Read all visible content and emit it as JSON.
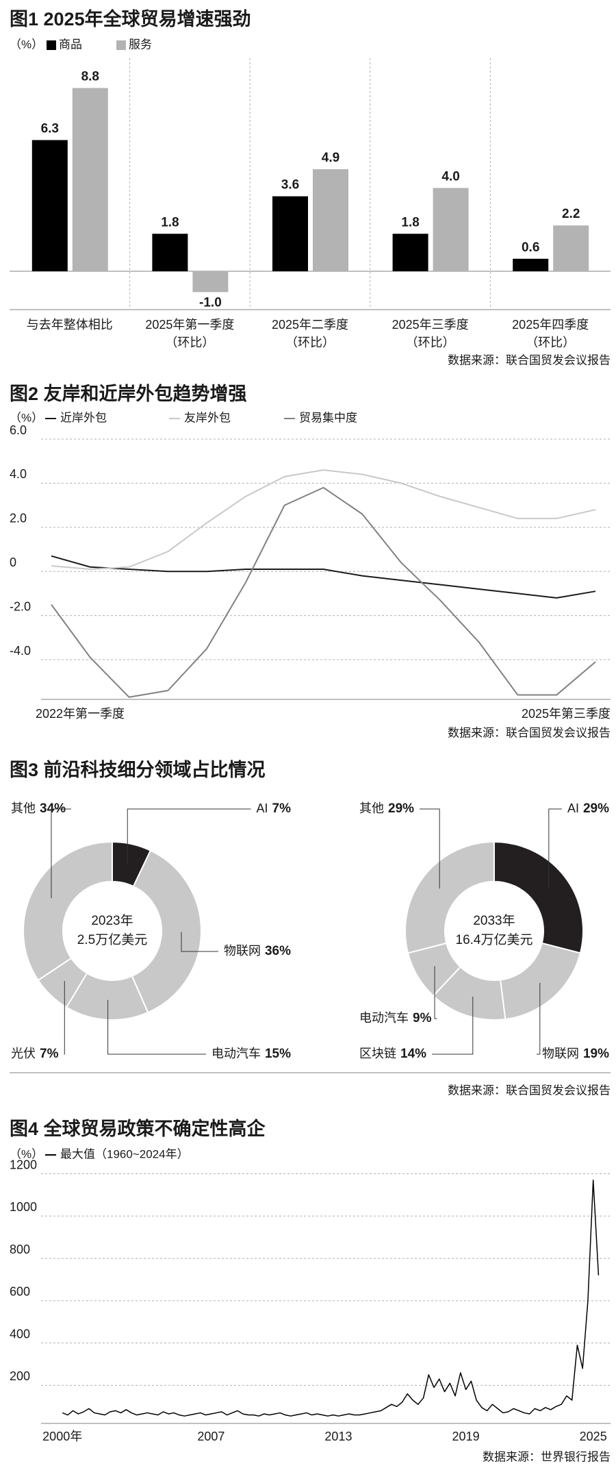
{
  "chart_data": [
    {
      "type": "bar",
      "title": "图1 2025年全球贸易增速强劲",
      "unit": "（%）",
      "categories": [
        [
          "与去年整体相比"
        ],
        [
          "2025年第一季度",
          "（环比）"
        ],
        [
          "2025年二季度",
          "（环比）"
        ],
        [
          "2025年三季度",
          "（环比）"
        ],
        [
          "2025年四季度",
          "（环比）"
        ]
      ],
      "series": [
        {
          "name": "商品",
          "color": "#000000",
          "values": [
            6.3,
            1.8,
            3.6,
            1.8,
            0.6
          ],
          "value_labels": [
            "6.3",
            "1.8",
            "3.6",
            "1.8",
            "0.6"
          ]
        },
        {
          "name": "服务",
          "color": "#b3b3b3",
          "values": [
            8.8,
            -1.0,
            4.9,
            4.0,
            2.2
          ],
          "value_labels": [
            "8.8",
            "-1.0",
            "4.9",
            "4.0",
            "2.2"
          ]
        }
      ],
      "source": "数据来源：联合国贸发会议报告"
    },
    {
      "type": "line",
      "title": "图2 友岸和近岸外包趋势增强",
      "unit": "（%）",
      "categories": [
        "2022年第一季度",
        null,
        null,
        null,
        null,
        null,
        null,
        null,
        null,
        null,
        null,
        null,
        null,
        null,
        "2025年第三季度"
      ],
      "ylim": [
        -5.8,
        6.0
      ],
      "yticks": [
        {
          "value": 6,
          "label": "6.0"
        },
        {
          "value": 4,
          "label": "4.0"
        },
        {
          "value": 2,
          "label": "2.0"
        },
        0,
        {
          "value": -2,
          "label": "-2.0"
        },
        {
          "value": -4,
          "label": "-4.0"
        }
      ],
      "grid": true,
      "series": [
        {
          "name": "近岸外包",
          "color": "#1a1a1a",
          "values": [
            0.7,
            0.2,
            0.1,
            0.0,
            0.0,
            0.1,
            0.1,
            0.1,
            -0.2,
            -0.4,
            -0.6,
            -0.8,
            -1.0,
            -1.2,
            -0.9
          ]
        },
        {
          "name": "友岸外包",
          "color": "#c8c8c8",
          "values": [
            0.25,
            0.1,
            0.2,
            0.9,
            2.2,
            3.4,
            4.3,
            4.6,
            4.4,
            4.0,
            3.4,
            2.9,
            2.4,
            2.4,
            2.8
          ]
        },
        {
          "name": "贸易集中度",
          "color": "#808080",
          "values": [
            -1.5,
            -3.9,
            -5.7,
            -5.4,
            -3.5,
            -0.5,
            3.0,
            3.8,
            2.6,
            0.4,
            -1.3,
            -3.2,
            -5.6,
            -5.6,
            -4.1
          ]
        }
      ],
      "source": "数据来源：联合国贸发会议报告"
    },
    {
      "type": "donut",
      "title": "图3 前沿科技细分领域占比情况",
      "center_label": [
        "2023年",
        "2.5万亿美元"
      ],
      "categories": [
        "AI",
        "物联网",
        "电动汽车",
        "光伏",
        "其他"
      ],
      "values": [
        7,
        36,
        15,
        7,
        34
      ],
      "value_labels": [
        "7%",
        "36%",
        "15%",
        "7%",
        "34%"
      ],
      "colors": [
        "#231f20",
        "#c8c8c8",
        "#c8c8c8",
        "#c8c8c8",
        "#c8c8c8"
      ]
    },
    {
      "type": "donut",
      "center_label": [
        "2033年",
        "16.4万亿美元"
      ],
      "categories": [
        "AI",
        "物联网",
        "区块链",
        "电动汽车",
        "其他"
      ],
      "values": [
        29,
        19,
        14,
        9,
        29
      ],
      "value_labels": [
        "29%",
        "19%",
        "14%",
        "9%",
        "29%"
      ],
      "colors": [
        "#231f20",
        "#c8c8c8",
        "#c8c8c8",
        "#c8c8c8",
        "#c8c8c8"
      ],
      "source": "数据来源：联合国贸发会议报告"
    },
    {
      "type": "line",
      "title": "图4 全球贸易政策不确定性高企",
      "unit": "（%）",
      "x": [
        2000,
        2000.25,
        2000.5,
        2000.75,
        2001,
        2001.25,
        2001.5,
        2001.75,
        2002,
        2002.25,
        2002.5,
        2002.75,
        2003,
        2003.25,
        2003.5,
        2003.75,
        2004,
        2004.25,
        2004.5,
        2004.75,
        2005,
        2005.25,
        2005.5,
        2005.75,
        2006,
        2006.25,
        2006.5,
        2006.75,
        2007,
        2007.25,
        2007.5,
        2007.75,
        2008,
        2008.25,
        2008.5,
        2008.75,
        2009,
        2009.25,
        2009.5,
        2009.75,
        2010,
        2010.25,
        2010.5,
        2010.75,
        2011,
        2011.25,
        2011.5,
        2011.75,
        2012,
        2012.25,
        2012.5,
        2012.75,
        2013,
        2013.25,
        2013.5,
        2013.75,
        2014,
        2014.25,
        2014.5,
        2014.75,
        2015,
        2015.25,
        2015.5,
        2015.75,
        2016,
        2016.25,
        2016.5,
        2016.75,
        2017,
        2017.25,
        2017.5,
        2017.75,
        2018,
        2018.25,
        2018.5,
        2018.75,
        2019,
        2019.25,
        2019.5,
        2019.75,
        2020,
        2020.25,
        2020.5,
        2020.75,
        2021,
        2021.25,
        2021.5,
        2021.75,
        2022,
        2022.25,
        2022.5,
        2022.75,
        2023,
        2023.25,
        2023.5,
        2023.75,
        2024,
        2024.25,
        2024.5,
        2024.75,
        2025,
        2025.25
      ],
      "series": [
        {
          "name": "最大值（1960~2024年）",
          "color": "#000000",
          "values": [
            70,
            60,
            80,
            65,
            75,
            90,
            70,
            65,
            60,
            75,
            80,
            70,
            85,
            70,
            60,
            65,
            70,
            65,
            60,
            75,
            65,
            70,
            60,
            55,
            60,
            65,
            70,
            60,
            65,
            70,
            75,
            60,
            70,
            80,
            65,
            60,
            60,
            55,
            65,
            60,
            65,
            70,
            60,
            55,
            60,
            65,
            70,
            60,
            65,
            60,
            55,
            60,
            55,
            60,
            65,
            60,
            60,
            65,
            70,
            75,
            80,
            95,
            110,
            100,
            120,
            160,
            130,
            110,
            140,
            250,
            190,
            230,
            170,
            210,
            150,
            260,
            180,
            220,
            130,
            95,
            80,
            110,
            90,
            70,
            75,
            90,
            80,
            70,
            65,
            90,
            80,
            95,
            85,
            100,
            110,
            150,
            130,
            390,
            280,
            600,
            1170,
            720
          ]
        }
      ],
      "xlim": [
        1999.8,
        2025.3
      ],
      "xticks": [
        {
          "value": 2000,
          "label": "2000年"
        },
        2007,
        2013,
        2019,
        2025
      ],
      "ylim": [
        20,
        1260
      ],
      "yticks": [
        200,
        400,
        600,
        800,
        1000,
        1200
      ],
      "grid": true,
      "source": "数据来源：世界银行报告"
    }
  ]
}
